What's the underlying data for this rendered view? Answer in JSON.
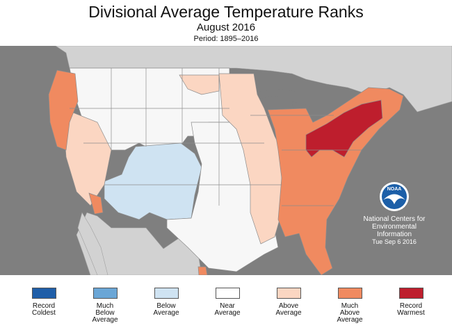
{
  "header": {
    "title": "Divisional Average Temperature Ranks",
    "subtitle": "August 2016",
    "period": "Period: 1895–2016"
  },
  "legend": [
    {
      "label": "Record\nColdest",
      "color": "#1f5ea8"
    },
    {
      "label": "Much\nBelow\nAverage",
      "color": "#6aa6d6"
    },
    {
      "label": "Below\nAverage",
      "color": "#cfe3f2"
    },
    {
      "label": "Near\nAverage",
      "color": "#ffffff"
    },
    {
      "label": "Above\nAverage",
      "color": "#fbd6c2"
    },
    {
      "label": "Much\nAbove\nAverage",
      "color": "#f08a60"
    },
    {
      "label": "Record\nWarmest",
      "color": "#be1e2d"
    }
  ],
  "credit": {
    "logo_text": "NOAA",
    "line1": "National Centers for",
    "line2": "Environmental",
    "line3": "Information",
    "date": "Tue Sep  6 2016"
  },
  "colors": {
    "ocean": "#7f7f7f",
    "land_outside": "#d2d2d2",
    "border": "#8c8c8c"
  }
}
